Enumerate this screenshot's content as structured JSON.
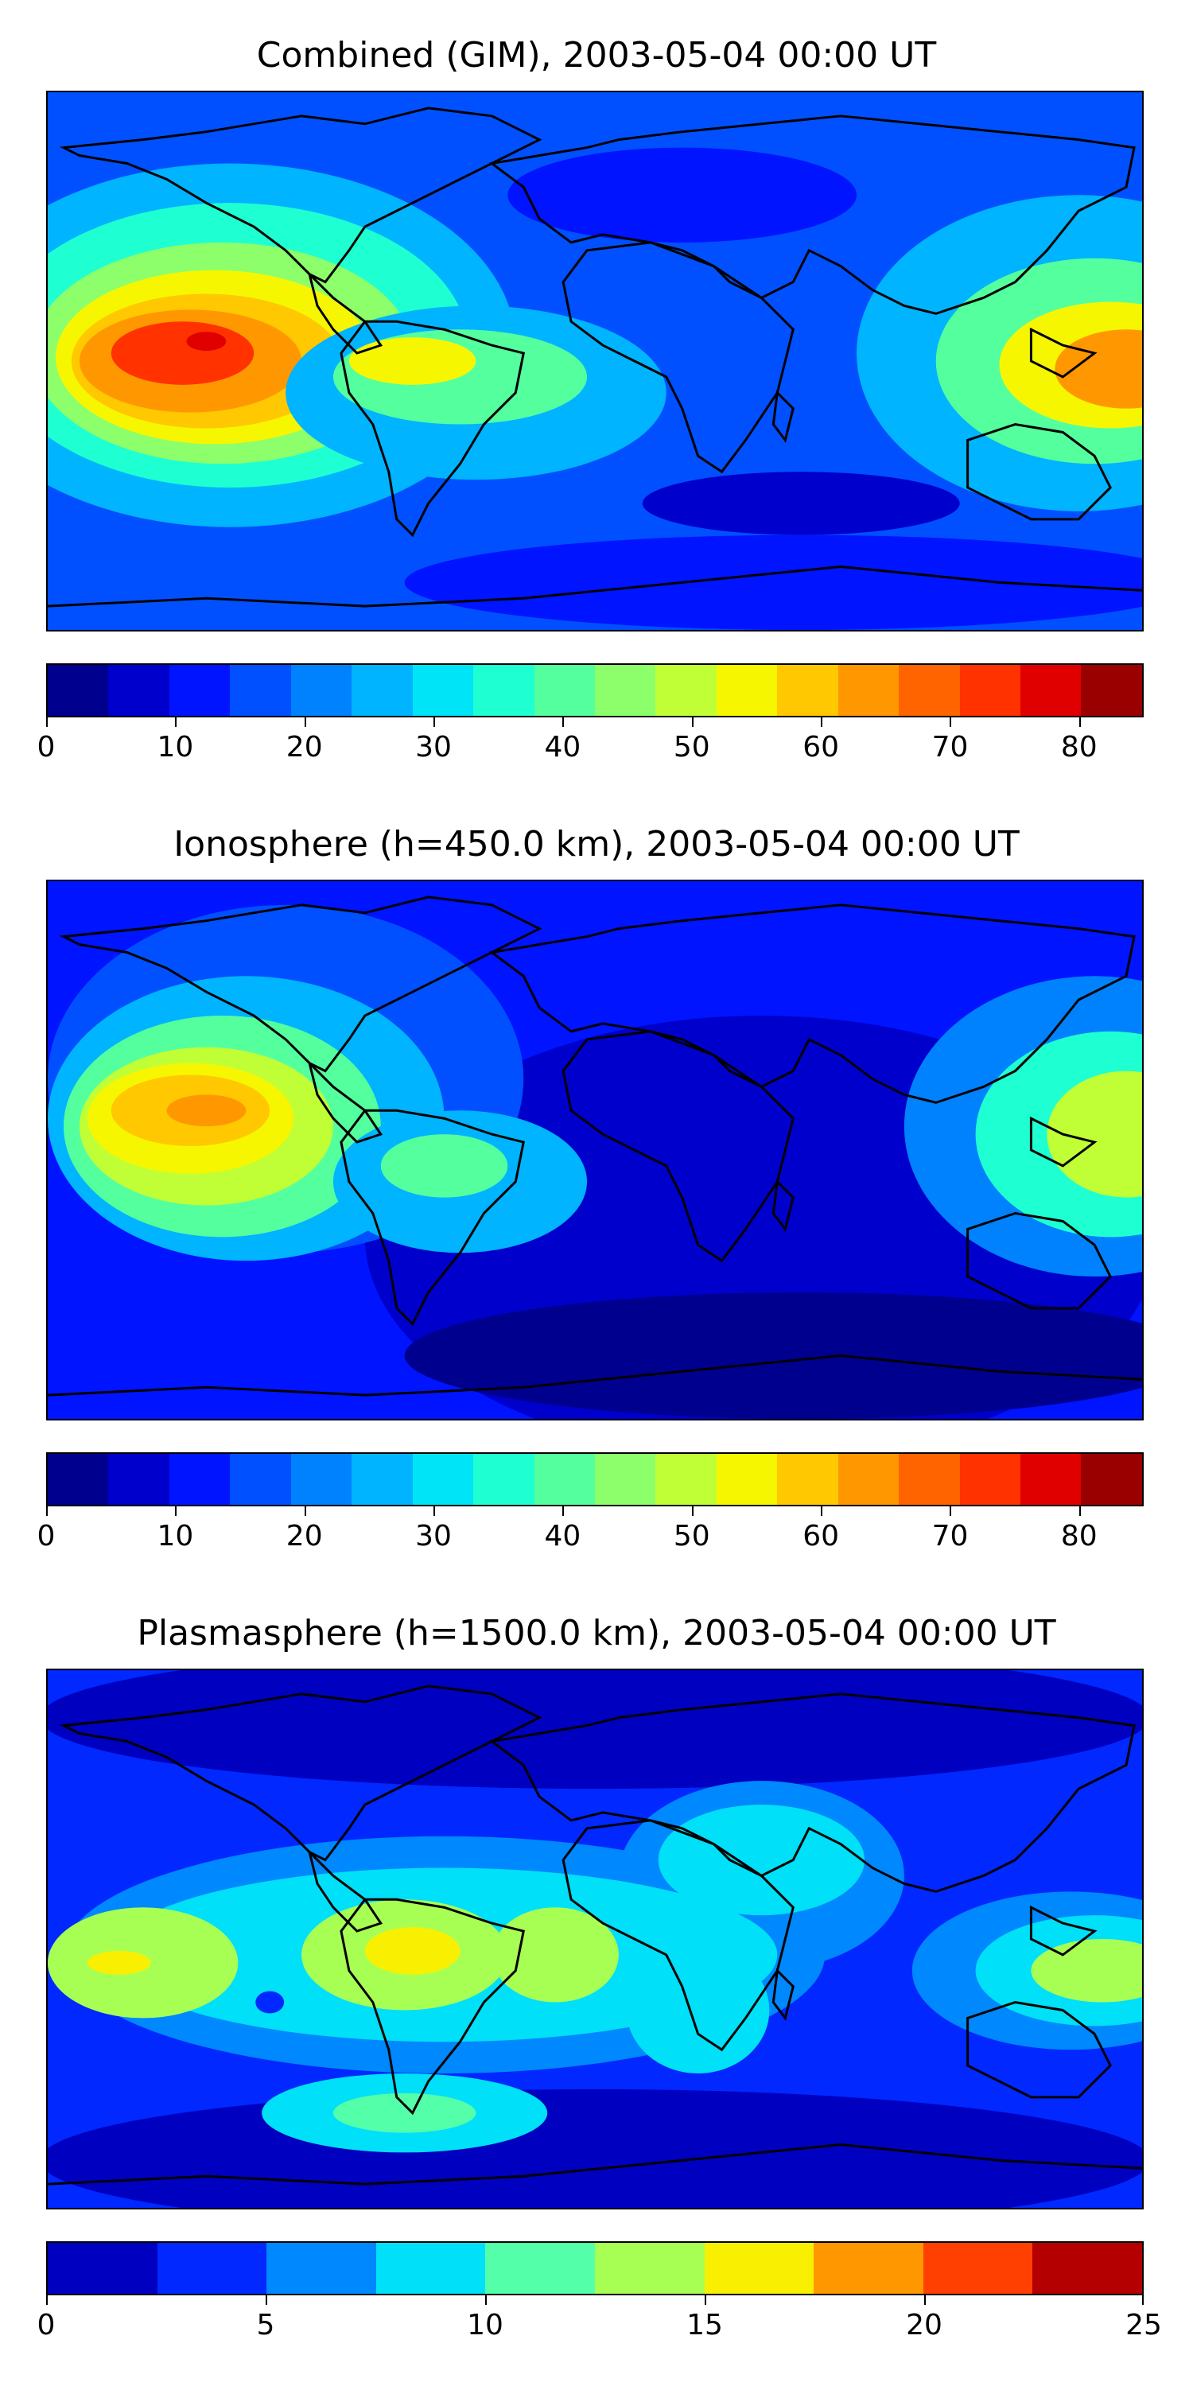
{
  "panels": [
    {
      "title": "Combined (GIM), 2003-05-04 00:00 UT",
      "colorbar": {
        "colors": [
          "#00008f",
          "#0000cd",
          "#0014ff",
          "#0050ff",
          "#0082ff",
          "#00b4ff",
          "#00e4f8",
          "#1effd2",
          "#54ff9e",
          "#8cff6a",
          "#c0ff36",
          "#f6f600",
          "#ffc800",
          "#ff9800",
          "#ff6400",
          "#ff3200",
          "#e00000",
          "#9a0000"
        ],
        "min": 0,
        "max": 85,
        "ticks": [
          0,
          10,
          20,
          30,
          40,
          50,
          60,
          70,
          80
        ]
      }
    },
    {
      "title": "Ionosphere  (h=450.0 km), 2003-05-04 00:00 UT",
      "colorbar": {
        "colors": [
          "#00008f",
          "#0000cd",
          "#0014ff",
          "#0050ff",
          "#0082ff",
          "#00b4ff",
          "#00e4f8",
          "#1effd2",
          "#54ff9e",
          "#8cff6a",
          "#c0ff36",
          "#f6f600",
          "#ffc800",
          "#ff9800",
          "#ff6400",
          "#ff3200",
          "#e00000",
          "#9a0000"
        ],
        "min": 0,
        "max": 85,
        "ticks": [
          0,
          10,
          20,
          30,
          40,
          50,
          60,
          70,
          80
        ]
      }
    },
    {
      "title": "Plasmasphere (h=1500.0 km), 2003-05-04 00:00 UT",
      "colorbar": {
        "colors": [
          "#0000c0",
          "#0028ff",
          "#0088ff",
          "#00e0f8",
          "#54ffaa",
          "#a8ff54",
          "#f8f000",
          "#ff9800",
          "#ff4000",
          "#b40000"
        ],
        "min": 0,
        "max": 25,
        "ticks": [
          0,
          5,
          10,
          15,
          20,
          25
        ]
      }
    }
  ]
}
